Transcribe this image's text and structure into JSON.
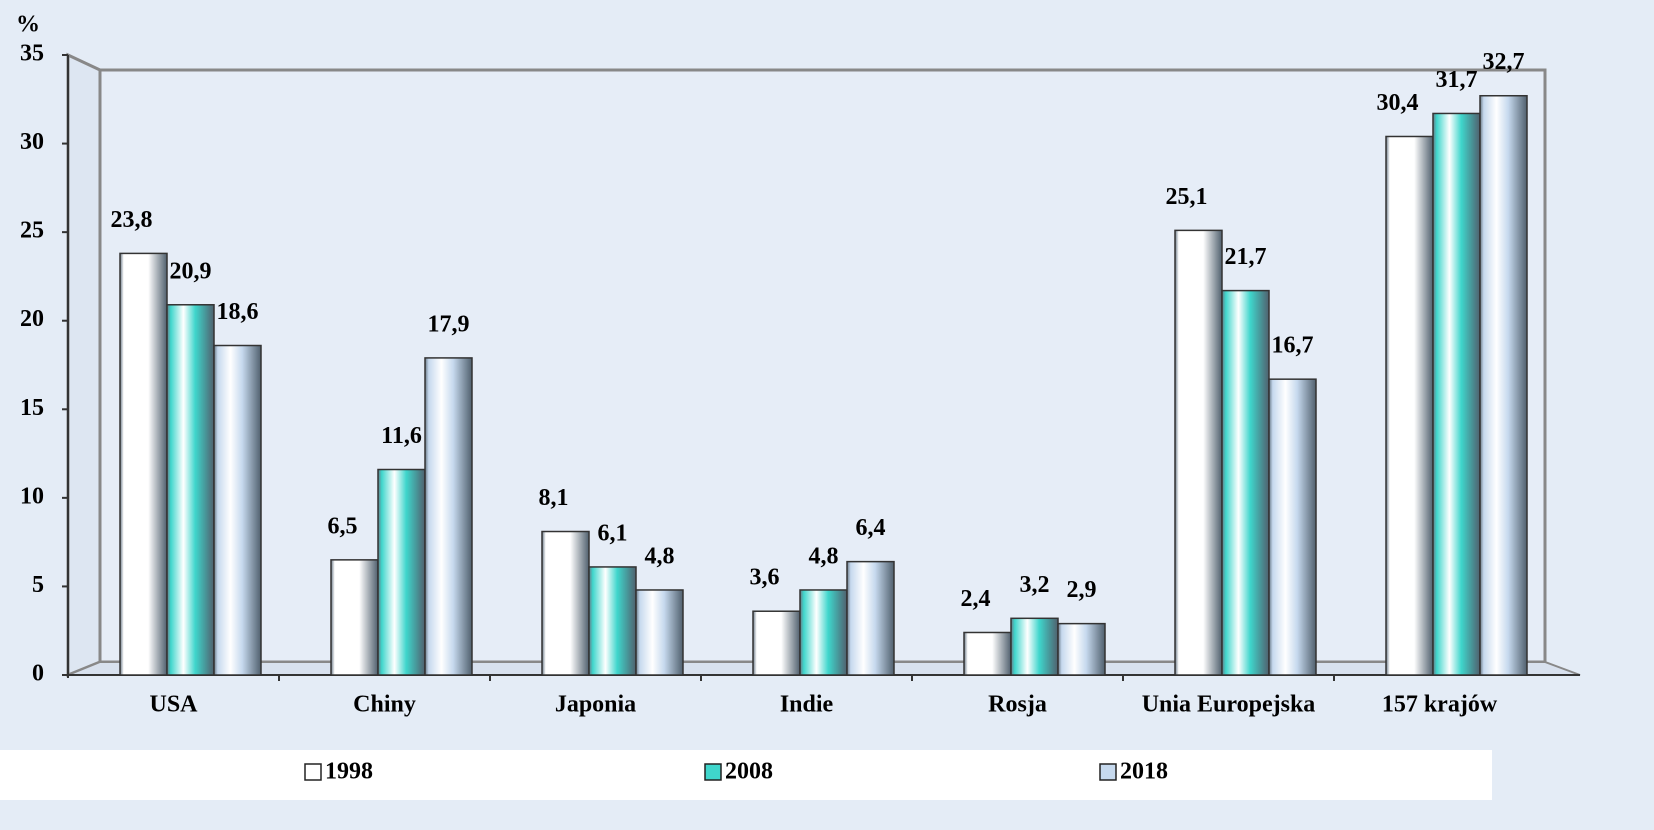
{
  "chart_data": {
    "type": "bar",
    "y_label": "%",
    "categories": [
      "USA",
      "Chiny",
      "Japonia",
      "Indie",
      "Rosja",
      "Unia Europejska",
      "157 krajów"
    ],
    "series": [
      {
        "name": "1998",
        "color": "#ffffff",
        "values": [
          23.8,
          6.5,
          8.1,
          3.6,
          2.4,
          25.1,
          30.4
        ],
        "value_labels": [
          "23,8",
          "6,5",
          "8,1",
          "3,6",
          "2,4",
          "25,1",
          "30,4"
        ]
      },
      {
        "name": "2008",
        "color": "#3fd6cc",
        "values": [
          20.9,
          11.6,
          6.1,
          4.8,
          3.2,
          21.7,
          31.7
        ],
        "value_labels": [
          "20,9",
          "11,6",
          "6,1",
          "4,8",
          "3,2",
          "21,7",
          "31,7"
        ]
      },
      {
        "name": "2018",
        "color": "#c6d9ee",
        "values": [
          18.6,
          17.9,
          4.8,
          6.4,
          2.9,
          16.7,
          32.7
        ],
        "value_labels": [
          "18,6",
          "17,9",
          "4,8",
          "6,4",
          "2,9",
          "16,7",
          "32,7"
        ]
      }
    ],
    "ylim": [
      0,
      35
    ],
    "yticks": [
      0,
      5,
      10,
      15,
      20,
      25,
      30,
      35
    ],
    "grid": false,
    "legend": "bottom"
  }
}
